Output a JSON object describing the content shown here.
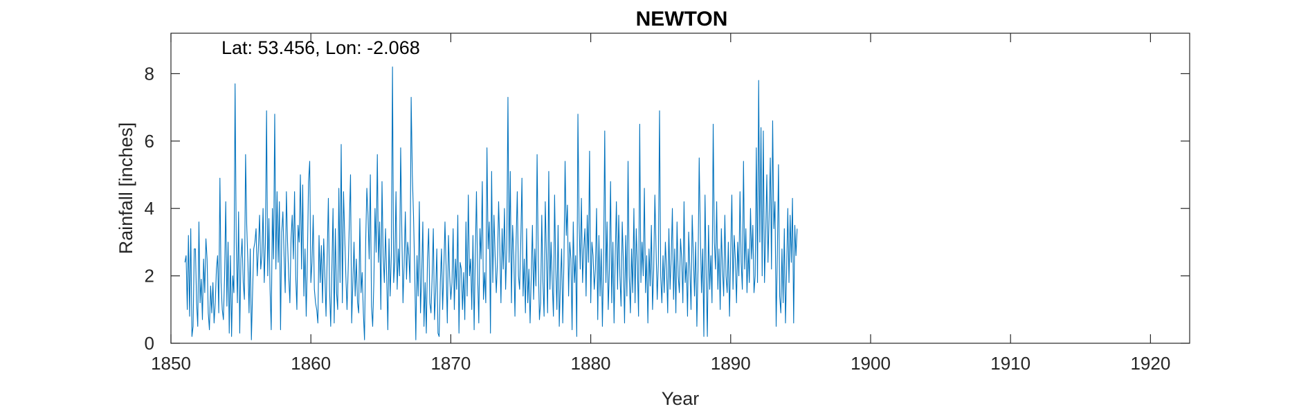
{
  "chart_data": {
    "type": "line",
    "title": "NEWTON",
    "annotation": "Lat: 53.456, Lon: -2.068",
    "xlabel": "Year",
    "ylabel": "Rainfall [inches]",
    "xlim": [
      1850,
      1922.8
    ],
    "ylim": [
      0,
      9.2
    ],
    "x_ticks": [
      1850,
      1860,
      1870,
      1880,
      1890,
      1900,
      1910,
      1920
    ],
    "y_ticks": [
      0,
      2,
      4,
      6,
      8
    ],
    "grid": false,
    "series_color": "#0072BD",
    "x_start": 1851.0,
    "x_step_years": 0.0833333,
    "series": [
      {
        "values": [
          2.4,
          2.6,
          1.0,
          3.2,
          0.8,
          3.4,
          0.2,
          0.5,
          2.8,
          2.8,
          1.2,
          0.5,
          3.6,
          1.2,
          1.9,
          0.7,
          2.5,
          1.5,
          3.1,
          2.5,
          0.9,
          0.4,
          1.7,
          0.9,
          1.8,
          0.6,
          1.2,
          2.2,
          2.6,
          0.9,
          4.9,
          1.8,
          1.0,
          0.7,
          2.0,
          4.2,
          1.1,
          3.0,
          0.3,
          2.6,
          0.2,
          2.0,
          1.5,
          7.7,
          3.0,
          1.2,
          3.9,
          0.3,
          2.5,
          3.1,
          1.8,
          1.3,
          5.6,
          3.5,
          2.4,
          0.9,
          2.8,
          0.1,
          1.5,
          2.8,
          3.0,
          3.4,
          2.0,
          2.8,
          3.8,
          2.2,
          2.6,
          4.0,
          1.8,
          3.0,
          6.9,
          2.0,
          3.7,
          1.6,
          0.4,
          4.0,
          2.5,
          6.8,
          2.2,
          4.5,
          2.4,
          4.2,
          0.4,
          3.3,
          3.9,
          2.6,
          1.5,
          4.5,
          3.0,
          2.0,
          1.2,
          3.1,
          3.8,
          2.5,
          4.5,
          2.0,
          1.0,
          3.5,
          3.0,
          5.0,
          2.2,
          4.7,
          1.4,
          2.8,
          0.8,
          2.5,
          4.8,
          5.4,
          1.8,
          2.4,
          3.8,
          1.6,
          1.2,
          1.0,
          0.6,
          3.2,
          1.8,
          2.9,
          1.2,
          3.1,
          2.0,
          0.8,
          2.6,
          4.3,
          1.6,
          0.5,
          2.2,
          4.0,
          0.6,
          3.4,
          1.5,
          1.0,
          4.6,
          1.8,
          5.9,
          1.2,
          4.5,
          3.2,
          2.0,
          1.0,
          2.2,
          3.6,
          5.0,
          0.6,
          1.8,
          3.0,
          1.4,
          2.5,
          1.2,
          0.9,
          3.7,
          1.5,
          2.1,
          0.9,
          0.1,
          3.0,
          4.6,
          3.8,
          2.5,
          5.0,
          1.1,
          0.5,
          1.8,
          4.0,
          2.7,
          5.6,
          2.4,
          3.6,
          1.0,
          4.8,
          2.6,
          1.8,
          3.4,
          2.0,
          0.4,
          3.1,
          1.4,
          2.6,
          8.2,
          1.8,
          2.4,
          4.5,
          1.6,
          2.8,
          2.0,
          5.8,
          3.3,
          1.2,
          2.4,
          3.9,
          1.9,
          3.0,
          2.6,
          1.8,
          7.3,
          5.0,
          3.8,
          2.2,
          0.1,
          2.6,
          1.4,
          4.2,
          0.9,
          2.0,
          3.6,
          0.5,
          1.8,
          0.3,
          2.5,
          3.4,
          1.2,
          0.9,
          2.0,
          3.4,
          0.7,
          1.5,
          2.8,
          0.3,
          0.2,
          1.8,
          2.8,
          1.0,
          2.2,
          3.6,
          2.2,
          0.6,
          3.2,
          2.0,
          1.3,
          1.8,
          3.4,
          1.0,
          2.5,
          1.6,
          3.8,
          0.3,
          2.4,
          2.2,
          1.0,
          2.1,
          0.7,
          3.6,
          1.4,
          4.4,
          2.0,
          2.5,
          1.0,
          3.2,
          0.4,
          2.6,
          4.5,
          2.0,
          0.6,
          3.4,
          2.5,
          4.8,
          1.3,
          2.1,
          1.2,
          5.8,
          2.8,
          3.6,
          0.3,
          5.1,
          1.8,
          3.8,
          2.6,
          1.5,
          2.4,
          4.2,
          2.9,
          1.2,
          3.4,
          2.2,
          4.0,
          1.6,
          2.8,
          7.3,
          2.4,
          5.1,
          1.2,
          3.5,
          2.6,
          0.8,
          3.0,
          4.5,
          2.0,
          1.6,
          3.0,
          4.9,
          1.4,
          2.5,
          0.9,
          3.4,
          1.2,
          2.2,
          0.6,
          2.0,
          3.5,
          1.3,
          2.8,
          1.7,
          5.6,
          2.5,
          0.7,
          1.2,
          3.8,
          1.8,
          0.8,
          4.2,
          2.6,
          0.9,
          5.1,
          1.6,
          3.0,
          1.8,
          0.8,
          4.4,
          2.2,
          1.0,
          3.5,
          0.5,
          1.8,
          2.8,
          0.6,
          2.4,
          5.4,
          3.2,
          4.1,
          1.4,
          3.0,
          2.5,
          0.4,
          3.6,
          1.8,
          2.6,
          0.2,
          6.8,
          3.6,
          2.2,
          4.3,
          1.8,
          2.8,
          3.4,
          1.4,
          3.8,
          2.4,
          5.7,
          1.2,
          3.0,
          2.6,
          1.6,
          2.2,
          4.0,
          0.7,
          3.2,
          1.4,
          2.8,
          0.5,
          2.4,
          6.3,
          1.8,
          3.6,
          1.0,
          2.2,
          4.8,
          1.2,
          3.0,
          0.6,
          2.6,
          4.2,
          1.6,
          3.8,
          2.0,
          1.1,
          3.6,
          2.4,
          0.6,
          3.2,
          1.4,
          5.4,
          2.0,
          0.9,
          2.8,
          1.5,
          4.0,
          1.2,
          3.4,
          2.3,
          0.8,
          6.5,
          1.8,
          3.0,
          2.0,
          4.6,
          1.5,
          2.6,
          0.6,
          2.8,
          1.7,
          3.5,
          1.0,
          2.2,
          4.4,
          2.8,
          1.3,
          2.4,
          6.9,
          2.0,
          1.2,
          2.6,
          1.5,
          3.0,
          2.2,
          0.9,
          3.4,
          1.6,
          2.5,
          4.0,
          1.3,
          2.8,
          0.9,
          3.6,
          2.0,
          1.5,
          3.1,
          2.5,
          1.2,
          4.2,
          1.8,
          2.4,
          0.8,
          3.3,
          2.2,
          1.0,
          3.8,
          2.6,
          1.4,
          3.0,
          0.5,
          2.2,
          5.5,
          3.2,
          1.5,
          2.8,
          0.2,
          4.4,
          2.0,
          0.2,
          3.5,
          1.6,
          2.6,
          1.2,
          6.5,
          3.0,
          2.2,
          4.2,
          1.6,
          2.8,
          1.0,
          3.4,
          2.2,
          1.4,
          3.8,
          2.0,
          1.5,
          3.0,
          0.8,
          2.6,
          4.4,
          1.6,
          3.2,
          2.5,
          1.2,
          3.0,
          2.0,
          4.5,
          2.4,
          1.6,
          5.4,
          2.2,
          3.4,
          1.5,
          2.8,
          1.8,
          4.0,
          2.5,
          3.5,
          1.5,
          2.0,
          5.8,
          1.8,
          7.8,
          3.0,
          6.4,
          2.0,
          6.3,
          1.8,
          3.2,
          5.0,
          2.4,
          3.8,
          5.5,
          2.2,
          6.6,
          3.4,
          4.2,
          0.5,
          2.6,
          5.3,
          1.4,
          0.9,
          2.8,
          1.2,
          3.4,
          0.6,
          2.2,
          4.0,
          1.8,
          3.8,
          2.4,
          4.3,
          0.6,
          3.5,
          2.6,
          3.4
        ]
      }
    ]
  }
}
